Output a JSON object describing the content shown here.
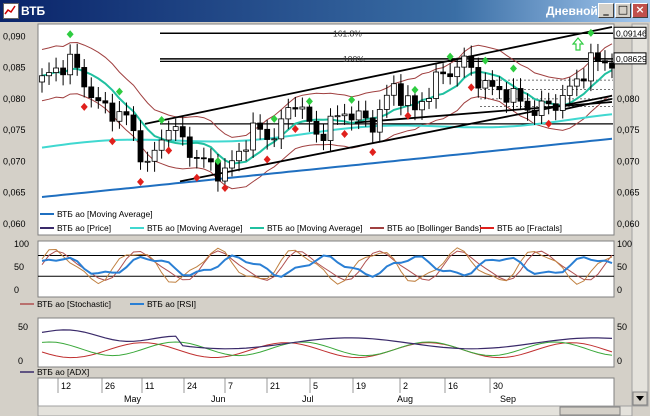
{
  "window": {
    "title": "ВТБ",
    "mode": "Дневной",
    "buttons": {
      "minimize": "_",
      "maximize": "□",
      "close": "×"
    }
  },
  "colors": {
    "background": "#ffffff",
    "frame": "#d4d0c8",
    "candle_up": "#ffffff",
    "candle_down": "#000000",
    "fractal_up": "#2ecc40",
    "fractal_down": "#e0201c",
    "ma_long": "#1f6fc0",
    "ma_mid": "#20c0a0",
    "ma_fast": "#40d8d0",
    "bollinger": "#a04040",
    "stoch_k": "#2a7fd4",
    "stoch_d": "#b05050",
    "adx": "#3a2a6a",
    "di_plus": "#3aa83a",
    "di_minus": "#c03030"
  },
  "price_panel": {
    "y_ticks": [
      "0,090",
      "0,085",
      "0,080",
      "0,075",
      "0,070",
      "0,065",
      "0,060"
    ],
    "y_ticks_right": [
      "0,090",
      "0,085",
      "0,080",
      "0,075",
      "0,070",
      "0,065",
      "0,060"
    ],
    "level_labels": [
      "0,09146",
      "0,08629"
    ],
    "fib_labels": [
      "161.8%",
      "100%"
    ],
    "legend": [
      {
        "label": "ВТБ ао [Moving Average]"
      },
      {
        "label": "ВТБ ао [Price]"
      },
      {
        "label": "ВТБ ао [Moving Average]"
      },
      {
        "label": "ВТБ ао [Moving Average]"
      },
      {
        "label": "ВТБ ао [Bollinger Bands]"
      },
      {
        "label": "ВТБ ао [Fractals]"
      }
    ]
  },
  "oscillator_panel": {
    "y_ticks": [
      "100",
      "50",
      "0"
    ],
    "y_ticks_right": [
      "100",
      "50",
      "0"
    ],
    "legend": [
      {
        "label": "ВТБ ао [Stochastic]"
      },
      {
        "label": "ВТБ ао [RSI]"
      }
    ]
  },
  "adx_panel": {
    "y_ticks": [
      "50",
      "0"
    ],
    "y_ticks_right": [
      "50",
      "0"
    ],
    "legend": [
      {
        "label": "ВТБ ао [ADX]"
      }
    ]
  },
  "date_axis": {
    "days": [
      "12",
      "26",
      "11",
      "24",
      "7",
      "21",
      "5",
      "19",
      "2",
      "16",
      "30"
    ],
    "months": [
      "May",
      "Jun",
      "Jul",
      "Aug",
      "Sep"
    ]
  }
}
